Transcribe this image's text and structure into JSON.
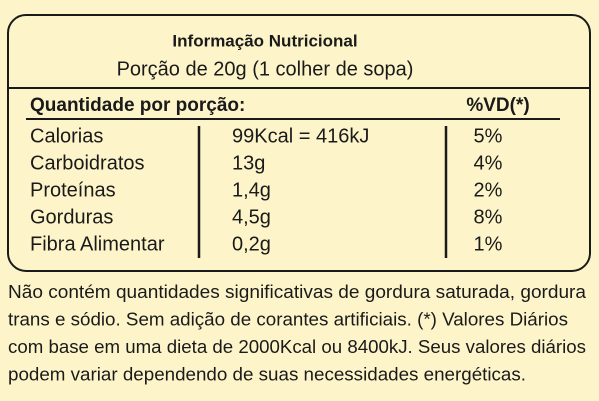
{
  "header": {
    "title": "Informação Nutricional",
    "serving": "Porção de 20g (1 colher de sopa)"
  },
  "table": {
    "columns": [
      "Quantidade por porção:",
      "%VD(*)"
    ],
    "rows": [
      [
        "Calorias",
        "99Kcal = 416kJ",
        "5%"
      ],
      [
        "Carboidratos",
        "13g",
        "4%"
      ],
      [
        "Proteínas",
        "1,4g",
        "2%"
      ],
      [
        "Gorduras",
        "4,5g",
        "8%"
      ],
      [
        "Fibra Alimentar",
        "0,2g",
        "1%"
      ]
    ]
  },
  "footnote": {
    "lines": [
      "Não contém quantidades significativas de  gordura saturada, gordura",
      "trans e sódio. Sem adição de corantes artificiais. (*) Valores Diários",
      "com base em uma dieta de 2000Kcal ou 8400kJ. Seus valores diários",
      "podem variar dependendo de suas necessidades energéticas."
    ]
  }
}
